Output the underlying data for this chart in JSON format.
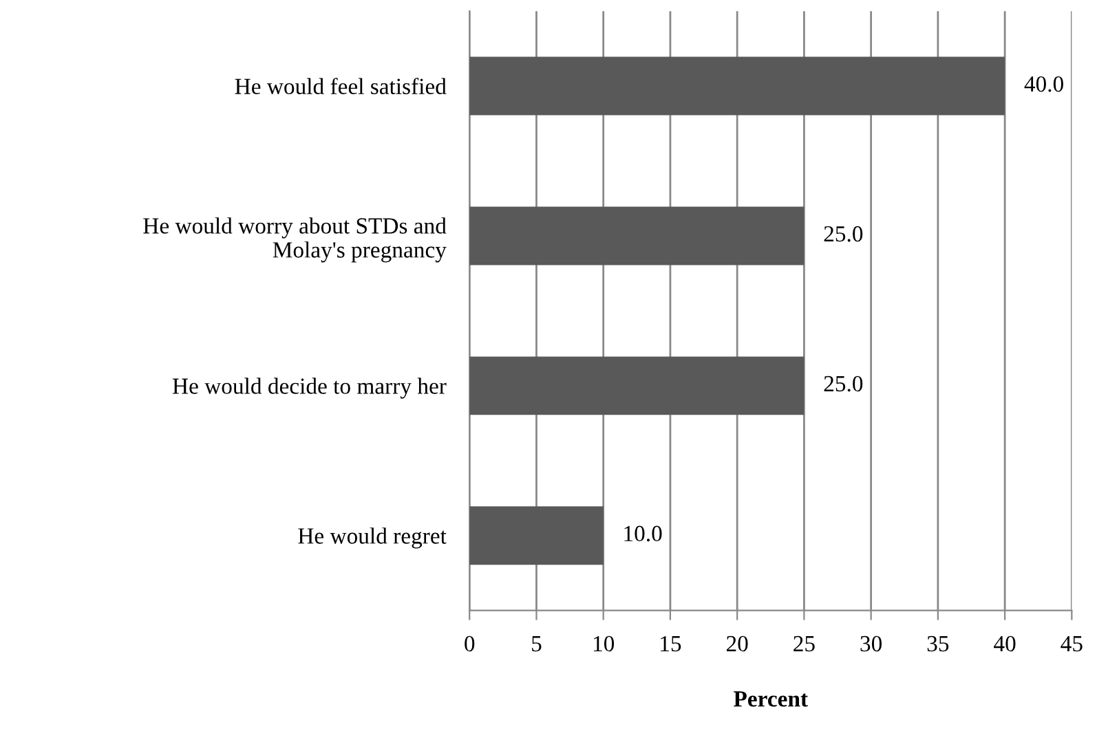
{
  "chart_data": {
    "type": "bar",
    "orientation": "horizontal",
    "xlabel": "Percent",
    "categories": [
      "He would feel satisfied",
      "He would worry about STDs and\nMolay's pregnancy",
      "He would decide to marry her",
      "He would regret"
    ],
    "values": [
      40,
      25,
      25,
      10
    ],
    "color": "#595959",
    "value_labels": [
      "40.0",
      "25.0",
      "25.0",
      "10.0"
    ],
    "xlim": [
      0,
      45
    ],
    "xticks": [
      0,
      5,
      10,
      15,
      20,
      25,
      30,
      35,
      40,
      45
    ],
    "grid": "x",
    "legend": false
  }
}
